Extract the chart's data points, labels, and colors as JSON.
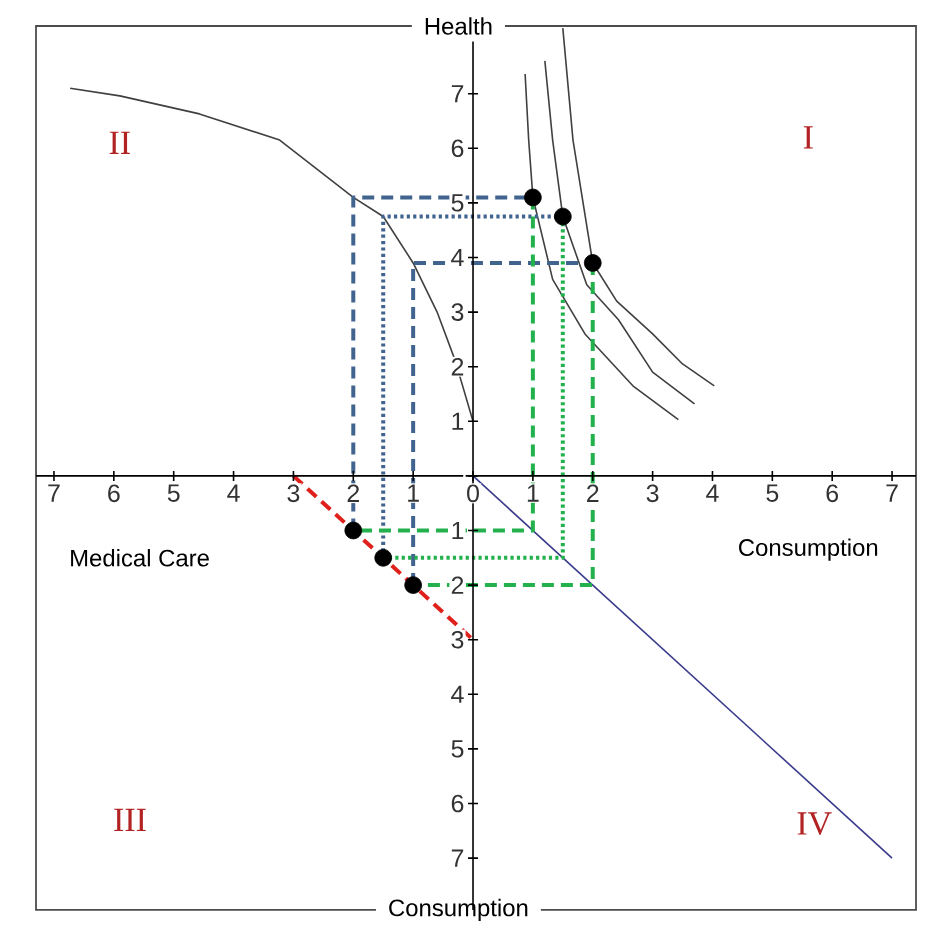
{
  "chart_data": {
    "type": "line",
    "xlabel": "Consumption",
    "ylabel": "Health",
    "annotations": [
      "II",
      "I",
      "III",
      "IV",
      "Medical Care",
      "Consumption"
    ],
    "xlim": [
      -7.3,
      7.4
    ],
    "ylim": [
      -7.95,
      8.24
    ],
    "xticks": [
      {
        "value": -7,
        "label": "7"
      },
      {
        "value": -6,
        "label": "6"
      },
      {
        "value": -5,
        "label": "5"
      },
      {
        "value": -4,
        "label": "4"
      },
      {
        "value": -3,
        "label": "3"
      },
      {
        "value": -2,
        "label": "2"
      },
      {
        "value": -1,
        "label": "1"
      },
      0,
      1,
      2,
      3,
      4,
      5,
      6,
      7
    ],
    "yticks": [
      {
        "value": -7,
        "label": "7"
      },
      {
        "value": -6,
        "label": "6"
      },
      {
        "value": -5,
        "label": "5"
      },
      {
        "value": -4,
        "label": "4"
      },
      {
        "value": -3,
        "label": "3"
      },
      {
        "value": -2,
        "label": "2"
      },
      {
        "value": -1,
        "label": "1"
      },
      {
        "value": 0,
        "label": null
      },
      1,
      2,
      3,
      4,
      5,
      6,
      7
    ],
    "series": [
      {
        "color": "#404040",
        "line_style": "solid",
        "marker": "none",
        "x": [
          -6.73,
          -5.9,
          -4.57,
          -3.23,
          -2.0,
          -1.5,
          -1.0,
          -0.6,
          -0.3,
          0
        ],
        "values": [
          7.1,
          6.96,
          6.63,
          6.15,
          5.1,
          4.75,
          3.9,
          3.0,
          2.12,
          1.0
        ]
      },
      {
        "color": "#404040",
        "line_style": "solid",
        "marker": "none",
        "x": [
          0.87,
          0.93,
          1.0,
          1.33,
          1.87,
          2.67,
          3.43
        ],
        "values": [
          7.36,
          6.15,
          5.1,
          3.6,
          2.6,
          1.65,
          1.03
        ]
      },
      {
        "color": "#404040",
        "line_style": "solid",
        "marker": "none",
        "x": [
          1.2,
          1.33,
          1.5,
          1.9,
          2.43,
          3.0,
          3.7
        ],
        "values": [
          7.6,
          6.15,
          4.75,
          3.5,
          2.86,
          1.9,
          1.32
        ]
      },
      {
        "color": "#404040",
        "line_style": "solid",
        "marker": "none",
        "x": [
          1.5,
          1.67,
          2.0,
          2.4,
          3.0,
          3.5,
          4.03
        ],
        "values": [
          8.2,
          6.15,
          3.9,
          3.2,
          2.6,
          2.05,
          1.65
        ]
      },
      {
        "color": "#3a3a8c",
        "line_style": "solid",
        "x": [
          0,
          7
        ],
        "values": [
          0,
          -7
        ]
      },
      {
        "color": "#e0201b",
        "line_style": "dashed",
        "marker": "none",
        "x": [
          -3,
          0
        ],
        "values": [
          0,
          -3
        ]
      },
      {
        "type": "line",
        "color": "#41648f",
        "line_style": "dashed",
        "marker": "none",
        "x": [
          -2,
          -2,
          1
        ],
        "values": [
          -1,
          5.1,
          5.1
        ]
      },
      {
        "type": "line",
        "color": "#41648f",
        "line_style": "dotted",
        "marker": "none",
        "x": [
          -1.5,
          -1.5,
          1.5
        ],
        "values": [
          -1.5,
          4.75,
          4.75
        ]
      },
      {
        "type": "line",
        "color": "#41648f",
        "line_style": "dashed",
        "marker": "none",
        "x": [
          -1,
          -1,
          2
        ],
        "values": [
          -2,
          3.9,
          3.9
        ]
      },
      {
        "type": "line",
        "color": "#22b14c",
        "line_style": "dashed",
        "marker": "none",
        "x": [
          1,
          1,
          -2
        ],
        "values": [
          5.1,
          -1,
          -1
        ]
      },
      {
        "type": "line",
        "color": "#22b14c",
        "line_style": "dotted",
        "marker": "none",
        "x": [
          1.5,
          1.5,
          -1.5
        ],
        "values": [
          4.75,
          -1.5,
          -1.5
        ]
      },
      {
        "type": "line",
        "color": "#22b14c",
        "line_style": "dashed",
        "marker": "none",
        "x": [
          2,
          2,
          -1
        ],
        "values": [
          3.9,
          -2,
          -2
        ]
      },
      {
        "type": "scatter",
        "color": "#000000",
        "marker": "circle",
        "x": [
          1,
          1.5,
          2,
          -2,
          -1.5,
          -1
        ],
        "values": [
          5.1,
          4.75,
          3.9,
          -1,
          -1.5,
          -2
        ]
      }
    ]
  }
}
